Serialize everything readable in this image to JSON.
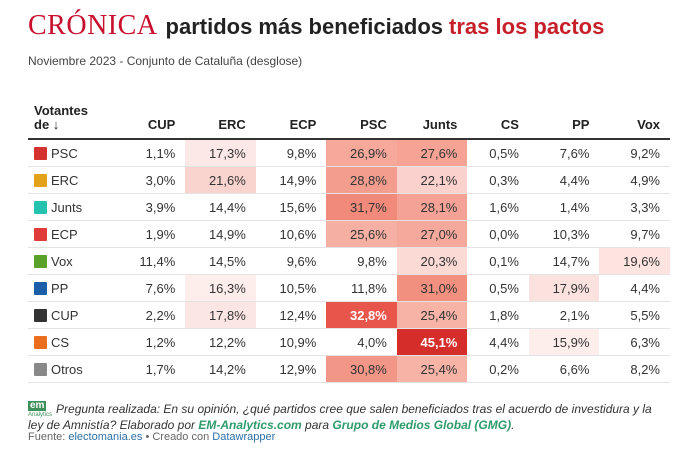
{
  "header": {
    "logo": "CRÓNICA",
    "title_main": "partidos más beneficiados",
    "title_accent": "tras los pactos"
  },
  "subtitle": "Noviembre 2023 - Conjunto de Cataluña (desglose)",
  "table": {
    "first_header": [
      "Votantes",
      "de ↓"
    ],
    "columns": [
      "CUP",
      "ERC",
      "ECP",
      "PSC",
      "Junts",
      "CS",
      "PP",
      "Vox"
    ],
    "rows": [
      {
        "party": "PSC",
        "icon": "psc-logo-icon",
        "icon_color": "#d4322f",
        "values": [
          "1,1%",
          "17,3%",
          "9,8%",
          "26,9%",
          "27,6%",
          "0,5%",
          "7,6%",
          "9,2%"
        ],
        "bg": [
          "",
          "#fce8e6",
          "",
          "#f6a99b",
          "#f6a396",
          "",
          "",
          ""
        ]
      },
      {
        "party": "ERC",
        "icon": "erc-logo-icon",
        "icon_color": "#e3a21a",
        "values": [
          "3,0%",
          "21,6%",
          "14,9%",
          "28,8%",
          "22,1%",
          "0,3%",
          "4,4%",
          "4,9%"
        ],
        "bg": [
          "",
          "#f9d3ce",
          "",
          "#f39d8f",
          "#fad1cc",
          "",
          "",
          ""
        ]
      },
      {
        "party": "Junts",
        "icon": "junts-logo-icon",
        "icon_color": "#23c3b0",
        "values": [
          "3,9%",
          "14,4%",
          "15,6%",
          "31,7%",
          "28,1%",
          "1,6%",
          "1,4%",
          "3,3%"
        ],
        "bg": [
          "",
          "",
          "",
          "#f18a7a",
          "#f4a295",
          "",
          "",
          ""
        ]
      },
      {
        "party": "ECP",
        "icon": "ecp-logo-icon",
        "icon_color": "#e13a3a",
        "values": [
          "1,9%",
          "14,9%",
          "10,6%",
          "25,6%",
          "27,0%",
          "0,0%",
          "10,3%",
          "9,7%"
        ],
        "bg": [
          "",
          "",
          "",
          "#f6b0a3",
          "#f5a99c",
          "",
          "",
          ""
        ]
      },
      {
        "party": "Vox",
        "icon": "vox-logo-icon",
        "icon_color": "#5aa12a",
        "values": [
          "11,4%",
          "14,5%",
          "9,6%",
          "9,8%",
          "20,3%",
          "0,1%",
          "14,7%",
          "19,6%"
        ],
        "bg": [
          "",
          "",
          "",
          "",
          "#fbdad5",
          "",
          "",
          "#fde4e0"
        ]
      },
      {
        "party": "PP",
        "icon": "pp-logo-icon",
        "icon_color": "#1d5ea8",
        "values": [
          "7,6%",
          "16,3%",
          "10,5%",
          "11,8%",
          "31,0%",
          "0,5%",
          "17,9%",
          "4,4%"
        ],
        "bg": [
          "",
          "#fdeeec",
          "",
          "",
          "#f29080",
          "",
          "#fbe2de",
          ""
        ]
      },
      {
        "party": "CUP",
        "icon": "cup-logo-icon",
        "icon_color": "#333333",
        "values": [
          "2,2%",
          "17,8%",
          "12,4%",
          "32,8%",
          "25,4%",
          "1,8%",
          "2,1%",
          "5,5%"
        ],
        "bg": [
          "",
          "#fce6e3",
          "",
          "#e8554a",
          "#f6b3a6",
          "",
          "",
          ""
        ]
      },
      {
        "party": "CS",
        "icon": "cs-logo-icon",
        "icon_color": "#eb6d1e",
        "values": [
          "1,2%",
          "12,2%",
          "10,9%",
          "4,0%",
          "45,1%",
          "4,4%",
          "15,9%",
          "6,3%"
        ],
        "bg": [
          "",
          "",
          "",
          "",
          "#d42d2a",
          "",
          "#fdeeec",
          ""
        ]
      },
      {
        "party": "Otros",
        "icon": "otros-logo-icon",
        "icon_color": "#888888",
        "values": [
          "1,7%",
          "14,2%",
          "12,9%",
          "30,8%",
          "25,4%",
          "0,2%",
          "6,6%",
          "8,2%"
        ],
        "bg": [
          "",
          "",
          "",
          "#f29787",
          "#f6b3a6",
          "",
          "",
          ""
        ]
      }
    ]
  },
  "footnote": {
    "logo_top": "em",
    "logo_bottom": "Analytics",
    "question": "Pregunta realizada: En su opinión, ¿qué partidos cree que salen beneficiados tras el acuerdo de investidura y la ley de Amnistía?",
    "elaborado": "Elaborado por",
    "em_link": "EM-Analytics.com",
    "para": "para",
    "gmg_link": "Grupo de Medios Global (GMG)",
    "end": "."
  },
  "source": {
    "prefix": "Fuente:",
    "link1": "electomania.es",
    "mid": "• Creado con",
    "link2": "Datawrapper"
  }
}
